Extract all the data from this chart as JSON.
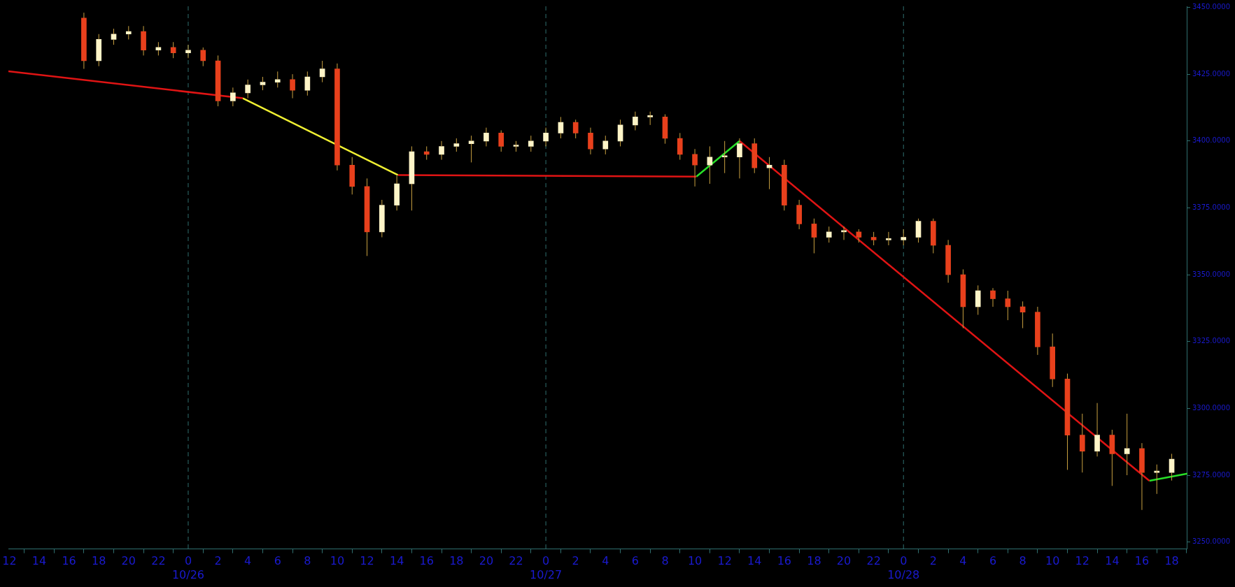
{
  "chart_data": {
    "type": "candlestick",
    "x": [
      "--10-25T17:00",
      "--10-25T18:00",
      "--10-25T19:00",
      "--10-25T20:00",
      "--10-25T21:00",
      "--10-25T22:00",
      "--10-25T23:00",
      "--10-26T00:00",
      "--10-26T01:00",
      "--10-26T02:00",
      "--10-26T03:00",
      "--10-26T04:00",
      "--10-26T05:00",
      "--10-26T06:00",
      "--10-26T07:00",
      "--10-26T08:00",
      "--10-26T09:00",
      "--10-26T10:00",
      "--10-26T11:00",
      "--10-26T12:00",
      "--10-26T13:00",
      "--10-26T14:00",
      "--10-26T15:00",
      "--10-26T16:00",
      "--10-26T17:00",
      "--10-26T18:00",
      "--10-26T19:00",
      "--10-26T20:00",
      "--10-26T21:00",
      "--10-26T22:00",
      "--10-26T23:00",
      "--10-27T00:00",
      "--10-27T01:00",
      "--10-27T02:00",
      "--10-27T03:00",
      "--10-27T04:00",
      "--10-27T05:00",
      "--10-27T06:00",
      "--10-27T07:00",
      "--10-27T08:00",
      "--10-27T09:00",
      "--10-27T10:00",
      "--10-27T11:00",
      "--10-27T12:00",
      "--10-27T13:00",
      "--10-27T14:00",
      "--10-27T15:00",
      "--10-27T16:00",
      "--10-27T17:00",
      "--10-27T18:00",
      "--10-27T19:00",
      "--10-27T20:00",
      "--10-27T21:00",
      "--10-27T22:00",
      "--10-27T23:00",
      "--10-28T00:00",
      "--10-28T01:00",
      "--10-28T02:00",
      "--10-28T03:00",
      "--10-28T04:00",
      "--10-28T05:00",
      "--10-28T06:00",
      "--10-28T07:00",
      "--10-28T08:00",
      "--10-28T09:00",
      "--10-28T10:00",
      "--10-28T11:00",
      "--10-28T12:00",
      "--10-28T13:00",
      "--10-28T14:00",
      "--10-28T15:00",
      "--10-28T16:00",
      "--10-28T17:00",
      "--10-28T18:00"
    ],
    "ohlc": [
      [
        3446,
        3448,
        3427,
        3430
      ],
      [
        3430,
        3440,
        3428,
        3438
      ],
      [
        3438,
        3442,
        3436,
        3440
      ],
      [
        3440,
        3443,
        3438,
        3441
      ],
      [
        3441,
        3443,
        3432,
        3434
      ],
      [
        3434,
        3437,
        3432,
        3435
      ],
      [
        3435,
        3437,
        3431,
        3433
      ],
      [
        3433,
        3436,
        3431,
        3434
      ],
      [
        3434,
        3435,
        3428,
        3430
      ],
      [
        3430,
        3432,
        3413,
        3415
      ],
      [
        3415,
        3420,
        3413,
        3418
      ],
      [
        3418,
        3423,
        3416,
        3421
      ],
      [
        3421,
        3424,
        3419,
        3422
      ],
      [
        3422,
        3426,
        3420,
        3423
      ],
      [
        3423,
        3425,
        3416,
        3419
      ],
      [
        3419,
        3426,
        3417,
        3424
      ],
      [
        3424,
        3430,
        3422,
        3427
      ],
      [
        3427,
        3429,
        3389,
        3391
      ],
      [
        3391,
        3394,
        3380,
        3383
      ],
      [
        3383,
        3386,
        3357,
        3366
      ],
      [
        3366,
        3378,
        3364,
        3376
      ],
      [
        3376,
        3387,
        3374,
        3384
      ],
      [
        3384,
        3398,
        3374,
        3396
      ],
      [
        3396,
        3398,
        3393,
        3395
      ],
      [
        3395,
        3400,
        3393,
        3398
      ],
      [
        3398,
        3401,
        3396,
        3399
      ],
      [
        3399,
        3402,
        3392,
        3400
      ],
      [
        3400,
        3405,
        3398,
        3403
      ],
      [
        3403,
        3404,
        3396,
        3398
      ],
      [
        3398,
        3400,
        3396,
        3398
      ],
      [
        3398,
        3402,
        3396,
        3400
      ],
      [
        3400,
        3405,
        3398,
        3403
      ],
      [
        3403,
        3409,
        3401,
        3407
      ],
      [
        3407,
        3408,
        3401,
        3403
      ],
      [
        3403,
        3405,
        3395,
        3397
      ],
      [
        3397,
        3402,
        3395,
        3400
      ],
      [
        3400,
        3408,
        3398,
        3406
      ],
      [
        3406,
        3411,
        3404,
        3409
      ],
      [
        3409,
        3411,
        3406,
        3409
      ],
      [
        3409,
        3410,
        3399,
        3401
      ],
      [
        3401,
        3403,
        3393,
        3395
      ],
      [
        3395,
        3397,
        3383,
        3391
      ],
      [
        3391,
        3398,
        3384,
        3394
      ],
      [
        3394,
        3400,
        3388,
        3394
      ],
      [
        3394,
        3401,
        3386,
        3399
      ],
      [
        3399,
        3401,
        3388,
        3390
      ],
      [
        3390,
        3394,
        3382,
        3391
      ],
      [
        3391,
        3393,
        3374,
        3376
      ],
      [
        3376,
        3378,
        3367,
        3369
      ],
      [
        3369,
        3371,
        3358,
        3364
      ],
      [
        3364,
        3368,
        3362,
        3366
      ],
      [
        3366,
        3368,
        3363,
        3366
      ],
      [
        3366,
        3367,
        3362,
        3364
      ],
      [
        3364,
        3366,
        3361,
        3363
      ],
      [
        3363,
        3366,
        3361,
        3363
      ],
      [
        3363,
        3367,
        3361,
        3364
      ],
      [
        3364,
        3371,
        3362,
        3370
      ],
      [
        3370,
        3371,
        3358,
        3361
      ],
      [
        3361,
        3363,
        3347,
        3350
      ],
      [
        3350,
        3352,
        3330,
        3338
      ],
      [
        3338,
        3346,
        3335,
        3344
      ],
      [
        3344,
        3345,
        3338,
        3341
      ],
      [
        3341,
        3344,
        3333,
        3338
      ],
      [
        3338,
        3340,
        3330,
        3336
      ],
      [
        3336,
        3338,
        3320,
        3323
      ],
      [
        3323,
        3328,
        3308,
        3311
      ],
      [
        3311,
        3313,
        3277,
        3290
      ],
      [
        3290,
        3298,
        3276,
        3284
      ],
      [
        3284,
        3302,
        3282,
        3290
      ],
      [
        3290,
        3292,
        3271,
        3283
      ],
      [
        3283,
        3298,
        3275,
        3285
      ],
      [
        3285,
        3287,
        3262,
        3276
      ],
      [
        3276,
        3279,
        3268,
        3276
      ],
      [
        3276,
        3283,
        3273,
        3281
      ]
    ],
    "colors": [
      "#e8401c",
      "#fff5c8",
      "#fff5c8",
      "#fff5c8",
      "#e8401c",
      "#fff5c8",
      "#e8401c",
      "#fff5c8",
      "#e8401c",
      "#e8401c",
      "#fff5c8",
      "#fff5c8",
      "#fff5c8",
      "#fff5c8",
      "#e8401c",
      "#fff5c8",
      "#fff5c8",
      "#e8401c",
      "#e8401c",
      "#e8401c",
      "#fff5c8",
      "#fff5c8",
      "#fff5c8",
      "#e8401c",
      "#fff5c8",
      "#fff5c8",
      "#fff5c8",
      "#fff5c8",
      "#e8401c",
      "#fff5c8",
      "#fff5c8",
      "#fff5c8",
      "#fff5c8",
      "#e8401c",
      "#e8401c",
      "#fff5c8",
      "#fff5c8",
      "#fff5c8",
      "#fff5c8",
      "#e8401c",
      "#e8401c",
      "#e8401c",
      "#fff5c8",
      "#fff5c8",
      "#fff5c8",
      "#e8401c",
      "#fff5c8",
      "#e8401c",
      "#e8401c",
      "#e8401c",
      "#fff5c8",
      "#fff5c8",
      "#e8401c",
      "#e8401c",
      "#fff5c8",
      "#fff5c8",
      "#fff5c8",
      "#e8401c",
      "#e8401c",
      "#e8401c",
      "#fff5c8",
      "#e8401c",
      "#e8401c",
      "#e8401c",
      "#e8401c",
      "#e8401c",
      "#e8401c",
      "#e8401c",
      "#fff5c8",
      "#e8401c",
      "#fff5c8",
      "#e8401c",
      "#fff5c8",
      "#fff5c8"
    ],
    "series": [
      {
        "type": "line",
        "color": "#e01414",
        "x": [
          "--10-25T11:56",
          "--10-26T03:40"
        ],
        "values": [
          3426.1,
          3416.0
        ]
      },
      {
        "type": "line",
        "color": "#f0f032",
        "x": [
          "--10-26T03:40",
          "--10-26T14:04"
        ],
        "values": [
          3416.0,
          3387.3
        ]
      },
      {
        "type": "line",
        "color": "#e01414",
        "x": [
          "--10-26T14:04",
          "--10-27T10:06"
        ],
        "values": [
          3387.3,
          3386.7
        ]
      },
      {
        "type": "line",
        "color": "#28e028",
        "x": [
          "--10-27T10:06",
          "--10-27T13:00"
        ],
        "values": [
          3386.7,
          3400.0
        ]
      },
      {
        "type": "line",
        "color": "#e01414",
        "x": [
          "--10-27T13:00",
          "--10-28T16:30"
        ],
        "values": [
          3400.0,
          3272.9
        ]
      },
      {
        "type": "line",
        "color": "#28e028",
        "x": [
          "--10-28T16:30",
          "--10-28T19:03"
        ],
        "values": [
          3272.9,
          3275.6
        ]
      }
    ],
    "xlim": [
      "--10-25T11:56",
      "--10-28T19:03"
    ],
    "xticks": [
      {
        "value": "--10-25T12:00",
        "label": "12"
      },
      {
        "value": "--10-25T14:00",
        "label": "14"
      },
      {
        "value": "--10-25T16:00",
        "label": "16"
      },
      {
        "value": "--10-25T18:00",
        "label": "18"
      },
      {
        "value": "--10-25T20:00",
        "label": "20"
      },
      {
        "value": "--10-25T22:00",
        "label": "22"
      },
      {
        "value": "--10-26T00:00",
        "label": "0\n10/26"
      },
      {
        "value": "--10-26T02:00",
        "label": "2"
      },
      {
        "value": "--10-26T04:00",
        "label": "4"
      },
      {
        "value": "--10-26T06:00",
        "label": "6"
      },
      {
        "value": "--10-26T08:00",
        "label": "8"
      },
      {
        "value": "--10-26T10:00",
        "label": "10"
      },
      {
        "value": "--10-26T12:00",
        "label": "12"
      },
      {
        "value": "--10-26T14:00",
        "label": "14"
      },
      {
        "value": "--10-26T16:00",
        "label": "16"
      },
      {
        "value": "--10-26T18:00",
        "label": "18"
      },
      {
        "value": "--10-26T20:00",
        "label": "20"
      },
      {
        "value": "--10-26T22:00",
        "label": "22"
      },
      {
        "value": "--10-27T00:00",
        "label": "0\n10/27"
      },
      {
        "value": "--10-27T02:00",
        "label": "2"
      },
      {
        "value": "--10-27T04:00",
        "label": "4"
      },
      {
        "value": "--10-27T06:00",
        "label": "6"
      },
      {
        "value": "--10-27T08:00",
        "label": "8"
      },
      {
        "value": "--10-27T10:00",
        "label": "10"
      },
      {
        "value": "--10-27T12:00",
        "label": "12"
      },
      {
        "value": "--10-27T14:00",
        "label": "14"
      },
      {
        "value": "--10-27T16:00",
        "label": "16"
      },
      {
        "value": "--10-27T18:00",
        "label": "18"
      },
      {
        "value": "--10-27T20:00",
        "label": "20"
      },
      {
        "value": "--10-27T22:00",
        "label": "22"
      },
      {
        "value": "--10-28T00:00",
        "label": "0\n10/28"
      },
      {
        "value": "--10-28T02:00",
        "label": "2"
      },
      {
        "value": "--10-28T04:00",
        "label": "4"
      },
      {
        "value": "--10-28T06:00",
        "label": "6"
      },
      {
        "value": "--10-28T08:00",
        "label": "8"
      },
      {
        "value": "--10-28T10:00",
        "label": "10"
      },
      {
        "value": "--10-28T12:00",
        "label": "12"
      },
      {
        "value": "--10-28T14:00",
        "label": "14"
      },
      {
        "value": "--10-28T16:00",
        "label": "16"
      },
      {
        "value": "--10-28T18:00",
        "label": "18"
      }
    ],
    "ylim": [
      3247.4,
      3450.4
    ],
    "yticks": [
      {
        "value": 3250,
        "label": "3250.0000"
      },
      {
        "value": 3275,
        "label": "3275.0000"
      },
      {
        "value": 3300,
        "label": "3300.0000"
      },
      {
        "value": 3325,
        "label": "3325.0000"
      },
      {
        "value": 3350,
        "label": "3350.0000"
      },
      {
        "value": 3375,
        "label": "3375.0000"
      },
      {
        "value": 3400,
        "label": "3400.0000"
      },
      {
        "value": 3425,
        "label": "3425.0000"
      },
      {
        "value": 3450,
        "label": "3450.0000"
      }
    ],
    "ref_lines": [
      {
        "axis": "x",
        "value": "--10-26T00:00",
        "color": "#2f6f6f",
        "line_style": "dashed"
      },
      {
        "axis": "x",
        "value": "--10-27T00:00",
        "color": "#2f6f6f",
        "line_style": "dashed"
      },
      {
        "axis": "x",
        "value": "--10-28T00:00",
        "color": "#2f6f6f",
        "line_style": "dashed"
      }
    ],
    "grid": false,
    "legend": false
  }
}
